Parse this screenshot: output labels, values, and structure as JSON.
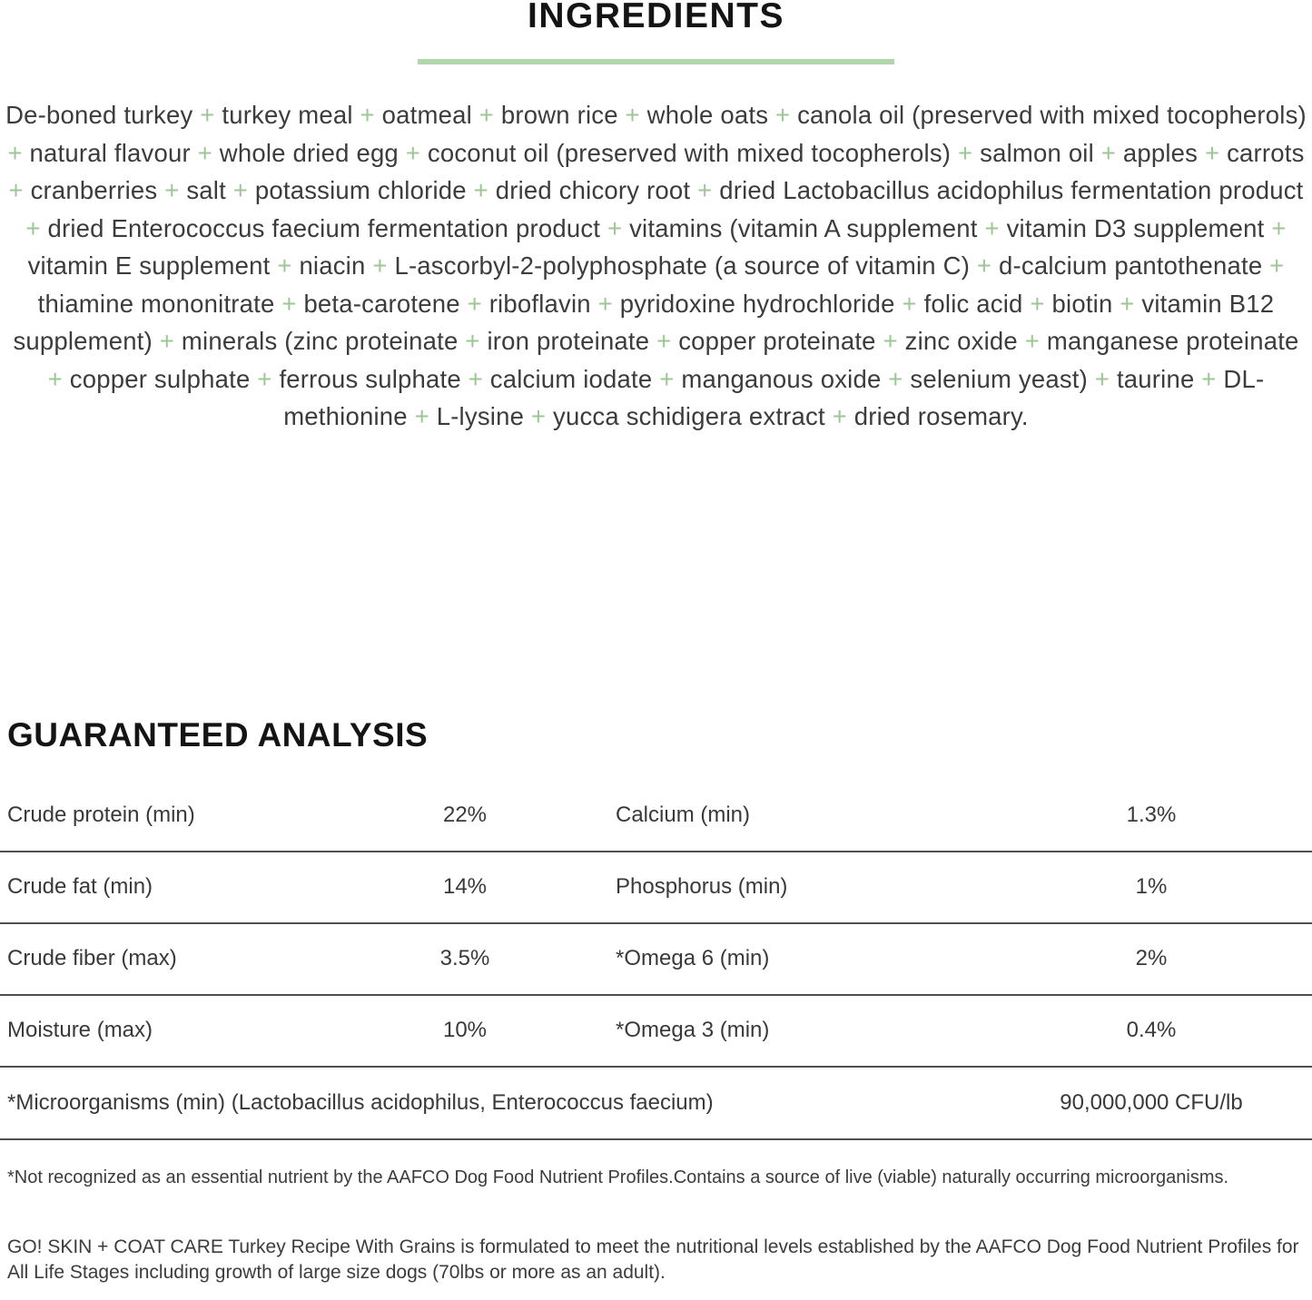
{
  "colors": {
    "accent_green": "#9cc795",
    "rule_green": "#b2d6ac",
    "divider_gray": "#4f4f4f"
  },
  "ingredients": {
    "title": "INGREDIENTS",
    "separator": "+",
    "items": [
      "De-boned turkey",
      "turkey meal",
      "oatmeal",
      "brown rice",
      "whole oats",
      "canola oil (preserved with mixed tocopherols)",
      "natural flavour",
      "whole dried egg",
      "coconut oil (preserved with mixed tocopherols)",
      "salmon oil",
      "apples",
      "carrots",
      "cranberries",
      "salt",
      "potassium chloride",
      "dried chicory root",
      "dried Lactobacillus acidophilus fermentation product",
      "dried Enterococcus faecium fermentation product",
      "vitamins (vitamin A supplement",
      "vitamin D3 supplement",
      "vitamin E supplement",
      "niacin",
      "L-ascorbyl-2-polyphosphate (a source of vitamin C)",
      "d-calcium pantothenate",
      "thiamine mononitrate",
      "beta-carotene",
      "riboflavin",
      "pyridoxine hydrochloride",
      "folic acid",
      "biotin",
      "vitamin B12 supplement)",
      "minerals (zinc proteinate",
      "iron proteinate",
      "copper proteinate",
      "zinc oxide",
      "manganese proteinate",
      "copper sulphate",
      "ferrous sulphate",
      "calcium iodate",
      "manganous oxide",
      "selenium yeast)",
      "taurine",
      "DL-methionine",
      "L-lysine",
      "yucca schidigera extract",
      "dried rosemary."
    ]
  },
  "analysis": {
    "title": "GUARANTEED ANALYSIS",
    "rows": [
      {
        "left_label": "Crude protein (min)",
        "left_value": "22%",
        "right_label": "Calcium (min)",
        "right_value": "1.3%"
      },
      {
        "left_label": "Crude fat (min)",
        "left_value": "14%",
        "right_label": "Phosphorus (min)",
        "right_value": "1%"
      },
      {
        "left_label": "Crude fiber (max)",
        "left_value": "3.5%",
        "right_label": "*Omega 6 (min)",
        "right_value": "2%"
      },
      {
        "left_label": "Moisture (max)",
        "left_value": "10%",
        "right_label": "*Omega 3 (min)",
        "right_value": "0.4%"
      }
    ],
    "microorganisms_row": {
      "label": "*Microorganisms (min) (Lactobacillus acidophilus, Enterococcus faecium)",
      "value": "90,000,000 CFU/lb"
    }
  },
  "footnotes": {
    "aafco_note": "*Not recognized as an essential nutrient by the AAFCO Dog Food Nutrient Profiles.Contains a source of live (viable) naturally occurring microorganisms.",
    "formulation_note": "GO! SKIN + COAT CARE Turkey Recipe With Grains is formulated to meet the nutritional levels established by the AAFCO Dog Food Nutrient Profiles for All Life Stages including growth of large size dogs (70lbs or more as an adult)."
  }
}
